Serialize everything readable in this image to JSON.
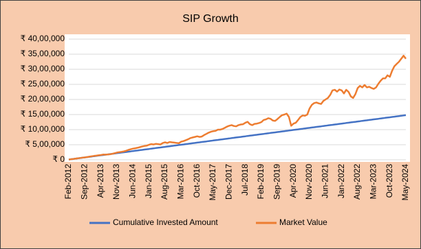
{
  "chart_data": {
    "type": "line",
    "title": "SIP Growth",
    "categories": [
      "Feb-2012",
      null,
      null,
      null,
      null,
      null,
      null,
      "Sep-2012",
      null,
      null,
      null,
      null,
      null,
      null,
      "Apr-2013",
      null,
      null,
      null,
      null,
      null,
      null,
      "Nov-2013",
      null,
      null,
      null,
      null,
      null,
      null,
      "Jun-2014",
      null,
      null,
      null,
      null,
      null,
      null,
      "Jan-2015",
      null,
      null,
      null,
      null,
      null,
      null,
      "Aug-2015",
      null,
      null,
      null,
      null,
      null,
      null,
      "Mar-2016",
      null,
      null,
      null,
      null,
      null,
      null,
      "Oct-2016",
      null,
      null,
      null,
      null,
      null,
      null,
      "May-2017",
      null,
      null,
      null,
      null,
      null,
      null,
      "Dec-2017",
      null,
      null,
      null,
      null,
      null,
      null,
      "Jul-2018",
      null,
      null,
      null,
      null,
      null,
      null,
      "Feb-2019",
      null,
      null,
      null,
      null,
      null,
      null,
      "Sep-2019",
      null,
      null,
      null,
      null,
      null,
      null,
      "Apr-2020",
      null,
      null,
      null,
      null,
      null,
      null,
      "Nov-2020",
      null,
      null,
      null,
      null,
      null,
      null,
      "Jun-2021",
      null,
      null,
      null,
      null,
      null,
      null,
      "Jan-2022",
      null,
      null,
      null,
      null,
      null,
      null,
      "Aug-2022",
      null,
      null,
      null,
      null,
      null,
      null,
      "Mar-2023",
      null,
      null,
      null,
      null,
      null,
      null,
      "Oct-2023",
      null,
      null,
      null,
      null,
      null,
      null,
      "May-2024"
    ],
    "series": [
      {
        "name": "Cumulative Invested Amount",
        "color": "#4472c4",
        "values": [
          10000,
          20000,
          30000,
          40000,
          50000,
          60000,
          70000,
          80000,
          90000,
          100000,
          110000,
          120000,
          130000,
          140000,
          150000,
          160000,
          170000,
          180000,
          190000,
          200000,
          210000,
          220000,
          230000,
          240000,
          250000,
          260000,
          270000,
          280000,
          290000,
          300000,
          310000,
          320000,
          330000,
          340000,
          350000,
          360000,
          370000,
          380000,
          390000,
          400000,
          410000,
          420000,
          430000,
          440000,
          450000,
          460000,
          470000,
          480000,
          490000,
          500000,
          510000,
          520000,
          530000,
          540000,
          550000,
          560000,
          570000,
          580000,
          590000,
          600000,
          610000,
          620000,
          630000,
          640000,
          650000,
          660000,
          670000,
          680000,
          690000,
          700000,
          710000,
          720000,
          730000,
          740000,
          750000,
          760000,
          770000,
          780000,
          790000,
          800000,
          810000,
          820000,
          830000,
          840000,
          850000,
          860000,
          870000,
          880000,
          890000,
          900000,
          910000,
          920000,
          930000,
          940000,
          950000,
          960000,
          970000,
          980000,
          990000,
          1000000,
          1010000,
          1020000,
          1030000,
          1040000,
          1050000,
          1060000,
          1070000,
          1080000,
          1090000,
          1100000,
          1110000,
          1120000,
          1130000,
          1140000,
          1150000,
          1160000,
          1170000,
          1180000,
          1190000,
          1200000,
          1210000,
          1220000,
          1230000,
          1240000,
          1250000,
          1260000,
          1270000,
          1280000,
          1290000,
          1300000,
          1310000,
          1320000,
          1330000,
          1340000,
          1350000,
          1360000,
          1370000,
          1380000,
          1390000,
          1400000,
          1410000,
          1420000,
          1430000,
          1440000,
          1450000,
          1460000,
          1470000,
          1480000
        ]
      },
      {
        "name": "Market Value",
        "color": "#ed7d31",
        "values": [
          10000,
          20000,
          30000,
          42000,
          50000,
          62000,
          72000,
          80000,
          92000,
          105000,
          118000,
          130000,
          138000,
          150000,
          160000,
          175000,
          170000,
          180000,
          185000,
          200000,
          220000,
          240000,
          255000,
          265000,
          280000,
          300000,
          330000,
          350000,
          370000,
          385000,
          400000,
          420000,
          440000,
          460000,
          470000,
          500000,
          520000,
          510000,
          530000,
          520000,
          510000,
          560000,
          580000,
          560000,
          590000,
          580000,
          570000,
          560000,
          550000,
          600000,
          620000,
          650000,
          680000,
          720000,
          740000,
          760000,
          780000,
          760000,
          770000,
          820000,
          860000,
          900000,
          930000,
          950000,
          960000,
          1000000,
          1000000,
          1020000,
          1060000,
          1100000,
          1130000,
          1150000,
          1120000,
          1110000,
          1150000,
          1170000,
          1180000,
          1230000,
          1260000,
          1180000,
          1150000,
          1190000,
          1200000,
          1220000,
          1250000,
          1320000,
          1340000,
          1380000,
          1360000,
          1300000,
          1290000,
          1350000,
          1420000,
          1480000,
          1500000,
          1530000,
          1420000,
          1130000,
          1200000,
          1230000,
          1320000,
          1420000,
          1470000,
          1460000,
          1500000,
          1700000,
          1820000,
          1880000,
          1900000,
          1870000,
          1850000,
          1950000,
          2000000,
          2050000,
          2150000,
          2300000,
          2320000,
          2260000,
          2330000,
          2300000,
          2200000,
          2320000,
          2250000,
          2100000,
          2050000,
          2180000,
          2380000,
          2450000,
          2400000,
          2480000,
          2400000,
          2420000,
          2380000,
          2350000,
          2400000,
          2520000,
          2620000,
          2700000,
          2700000,
          2800000,
          2750000,
          2950000,
          3100000,
          3180000,
          3250000,
          3350000,
          3450000,
          3350000
        ]
      }
    ],
    "ylim": [
      0,
      4000000
    ],
    "yticks": [
      {
        "value": 0,
        "label": "₹ 0"
      },
      {
        "value": 500000,
        "label": "₹ 5,00,000"
      },
      {
        "value": 1000000,
        "label": "₹ 10,00,000"
      },
      {
        "value": 1500000,
        "label": "₹ 15,00,000"
      },
      {
        "value": 2000000,
        "label": "₹ 20,00,000"
      },
      {
        "value": 2500000,
        "label": "₹ 25,00,000"
      },
      {
        "value": 3000000,
        "label": "₹ 30,00,000"
      },
      {
        "value": 3500000,
        "label": "₹ 35,00,000"
      },
      {
        "value": 4000000,
        "label": "₹ 40,00,000"
      }
    ],
    "grid": true,
    "legend": "bottom"
  }
}
